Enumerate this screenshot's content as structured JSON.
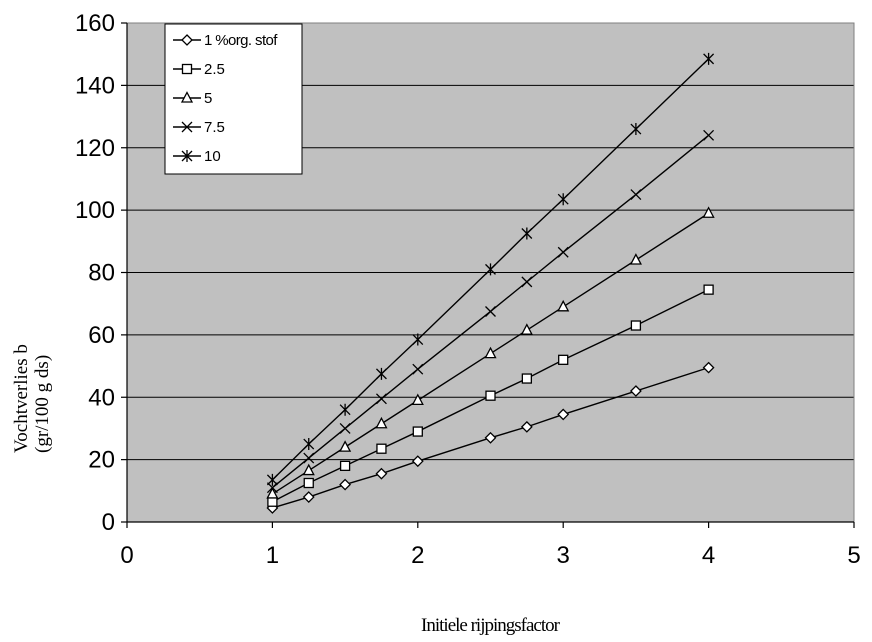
{
  "chart_data": {
    "type": "line",
    "title": "",
    "xlabel": "Initiele rijpingsfactor",
    "ylabel_line1": "Vochtverlies  b",
    "ylabel_line2": "(gr/100 g ds)",
    "xlim": [
      0,
      5
    ],
    "ylim": [
      0,
      160
    ],
    "x_ticks": [
      0,
      1,
      2,
      3,
      4,
      5
    ],
    "y_ticks": [
      0,
      20,
      40,
      60,
      80,
      100,
      120,
      140,
      160
    ],
    "grid": "horizontal",
    "plot_background": "#c0c0c0",
    "line_color": "#000000",
    "legend_position": "top-left",
    "x": [
      1,
      1.25,
      1.5,
      1.75,
      2,
      2.5,
      2.75,
      3,
      3.5,
      4
    ],
    "series": [
      {
        "name": "1 %org. stof",
        "marker": "diamond",
        "values": [
          4.5,
          8,
          12,
          15.5,
          19.5,
          27,
          30.5,
          34.5,
          42,
          49.5
        ]
      },
      {
        "name": "2.5",
        "marker": "square",
        "values": [
          6.5,
          12.5,
          18,
          23.5,
          29,
          40.5,
          46,
          52,
          63,
          74.5
        ]
      },
      {
        "name": "5",
        "marker": "triangle",
        "values": [
          9,
          16.5,
          24,
          31.5,
          39,
          54,
          61.5,
          69,
          84,
          99
        ]
      },
      {
        "name": "7.5",
        "marker": "x",
        "values": [
          11,
          20.5,
          30,
          39.5,
          49,
          67.5,
          77,
          86.5,
          105,
          124
        ]
      },
      {
        "name": "10",
        "marker": "star",
        "values": [
          13.5,
          25,
          36,
          47.5,
          58.5,
          81,
          92.5,
          103.5,
          126,
          148.5
        ]
      }
    ]
  }
}
